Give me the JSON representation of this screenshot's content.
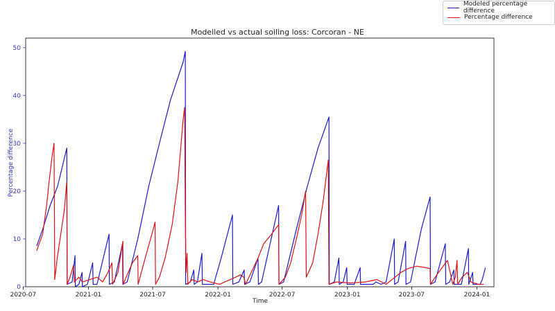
{
  "chart_data": {
    "type": "line",
    "title": "Modelled vs actual soiling loss: Corcoran - NE",
    "xlabel": "Time",
    "ylabel": "Percentage difference",
    "xlim": [
      "2020-07-08",
      "2024-02-18"
    ],
    "ylim": [
      0,
      52
    ],
    "yticks": [
      0,
      10,
      20,
      30,
      40,
      50
    ],
    "xticks": [
      "2020-07",
      "2021-01",
      "2021-07",
      "2022-01",
      "2022-07",
      "2023-01",
      "2023-07",
      "2024-01"
    ],
    "legend_position": "top-right",
    "series": [
      {
        "name": "Modeled percentage difference",
        "color": "#1a1acc",
        "points": [
          [
            "2020-08-08",
            8.5
          ],
          [
            "2020-08-25",
            12
          ],
          [
            "2020-09-15",
            17
          ],
          [
            "2020-10-06",
            21
          ],
          [
            "2020-10-27",
            27.5
          ],
          [
            "2020-11-01",
            29
          ],
          [
            "2020-11-02",
            0.5
          ],
          [
            "2020-11-16",
            1
          ],
          [
            "2020-11-24",
            6.5
          ],
          [
            "2020-11-25",
            0
          ],
          [
            "2020-12-05",
            0.5
          ],
          [
            "2020-12-14",
            3
          ],
          [
            "2020-12-15",
            0
          ],
          [
            "2020-12-29",
            0.5
          ],
          [
            "2021-01-13",
            5
          ],
          [
            "2021-01-14",
            0.5
          ],
          [
            "2021-01-25",
            0.5
          ],
          [
            "2021-02-28",
            11
          ],
          [
            "2021-03-01",
            0.5
          ],
          [
            "2021-03-15",
            1
          ],
          [
            "2021-04-07",
            9
          ],
          [
            "2021-04-08",
            0.5
          ],
          [
            "2021-04-20",
            1
          ],
          [
            "2021-05-20",
            10
          ],
          [
            "2021-06-20",
            21
          ],
          [
            "2021-07-20",
            30
          ],
          [
            "2021-08-20",
            39
          ],
          [
            "2021-09-25",
            47
          ],
          [
            "2021-10-01",
            49.2
          ],
          [
            "2021-10-02",
            0.5
          ],
          [
            "2021-10-15",
            1
          ],
          [
            "2021-10-25",
            3.5
          ],
          [
            "2021-10-26",
            0.5
          ],
          [
            "2021-11-04",
            1
          ],
          [
            "2021-11-17",
            7
          ],
          [
            "2021-11-18",
            0.5
          ],
          [
            "2021-12-20",
            0.5
          ],
          [
            "2022-01-10",
            6
          ],
          [
            "2022-02-11",
            15
          ],
          [
            "2022-02-12",
            0.5
          ],
          [
            "2022-03-01",
            1
          ],
          [
            "2022-03-16",
            3.5
          ],
          [
            "2022-03-17",
            0.5
          ],
          [
            "2022-04-01",
            1
          ],
          [
            "2022-04-24",
            6
          ],
          [
            "2022-04-25",
            0.5
          ],
          [
            "2022-05-04",
            1
          ],
          [
            "2022-06-21",
            17
          ],
          [
            "2022-06-22",
            0.5
          ],
          [
            "2022-07-05",
            1
          ],
          [
            "2022-08-10",
            12
          ],
          [
            "2022-09-10",
            21
          ],
          [
            "2022-10-10",
            29
          ],
          [
            "2022-11-10",
            35.5
          ],
          [
            "2022-11-11",
            0.5
          ],
          [
            "2022-11-25",
            1
          ],
          [
            "2022-12-08",
            6
          ],
          [
            "2022-12-09",
            0.5
          ],
          [
            "2022-12-20",
            1
          ],
          [
            "2022-12-30",
            4
          ],
          [
            "2022-12-31",
            0.5
          ],
          [
            "2023-01-20",
            0.5
          ],
          [
            "2023-02-06",
            4
          ],
          [
            "2023-02-07",
            0.5
          ],
          [
            "2023-03-15",
            0.5
          ],
          [
            "2023-03-22",
            1
          ],
          [
            "2023-04-06",
            0.5
          ],
          [
            "2023-04-20",
            1
          ],
          [
            "2023-05-13",
            10
          ],
          [
            "2023-05-14",
            0.5
          ],
          [
            "2023-05-24",
            1
          ],
          [
            "2023-06-14",
            9.5
          ],
          [
            "2023-06-15",
            0.5
          ],
          [
            "2023-06-28",
            1
          ],
          [
            "2023-07-28",
            12
          ],
          [
            "2023-08-22",
            18.8
          ],
          [
            "2023-08-23",
            0.5
          ],
          [
            "2023-09-05",
            1
          ],
          [
            "2023-10-04",
            9
          ],
          [
            "2023-10-05",
            0.5
          ],
          [
            "2023-10-16",
            1
          ],
          [
            "2023-10-28",
            3.5
          ],
          [
            "2023-10-29",
            0.5
          ],
          [
            "2023-11-18",
            0.5
          ],
          [
            "2023-12-08",
            8
          ],
          [
            "2023-12-09",
            0.5
          ],
          [
            "2023-12-20",
            3
          ],
          [
            "2023-12-21",
            0.5
          ],
          [
            "2024-01-10",
            0.5
          ],
          [
            "2024-01-16",
            1.5
          ],
          [
            "2024-01-25",
            4
          ]
        ]
      },
      {
        "name": "Percentage difference",
        "color": "#dd1111",
        "points": [
          [
            "2020-08-08",
            7.5
          ],
          [
            "2020-08-15",
            9
          ],
          [
            "2020-08-25",
            11
          ],
          [
            "2020-09-05",
            17
          ],
          [
            "2020-09-12",
            22
          ],
          [
            "2020-09-20",
            27
          ],
          [
            "2020-09-26",
            30
          ],
          [
            "2020-09-28",
            1.5
          ],
          [
            "2020-10-05",
            6
          ],
          [
            "2020-10-15",
            11
          ],
          [
            "2020-10-25",
            16
          ],
          [
            "2020-11-01",
            22
          ],
          [
            "2020-11-02",
            0.5
          ],
          [
            "2020-11-10",
            2
          ],
          [
            "2020-11-20",
            4.5
          ],
          [
            "2020-11-22",
            1
          ],
          [
            "2020-12-05",
            2
          ],
          [
            "2020-12-15",
            1
          ],
          [
            "2021-01-05",
            1.5
          ],
          [
            "2021-01-25",
            2
          ],
          [
            "2021-02-10",
            1
          ],
          [
            "2021-02-25",
            3
          ],
          [
            "2021-03-08",
            5
          ],
          [
            "2021-03-10",
            0.5
          ],
          [
            "2021-03-25",
            3
          ],
          [
            "2021-04-08",
            9.5
          ],
          [
            "2021-04-09",
            0.5
          ],
          [
            "2021-04-20",
            2.5
          ],
          [
            "2021-05-05",
            5
          ],
          [
            "2021-05-20",
            6.5
          ],
          [
            "2021-05-21",
            0.5
          ],
          [
            "2021-06-10",
            6
          ],
          [
            "2021-06-25",
            10
          ],
          [
            "2021-07-08",
            13.5
          ],
          [
            "2021-07-09",
            0.5
          ],
          [
            "2021-07-20",
            2
          ],
          [
            "2021-08-05",
            6
          ],
          [
            "2021-08-25",
            13
          ],
          [
            "2021-09-10",
            22
          ],
          [
            "2021-09-25",
            35
          ],
          [
            "2021-09-29",
            37.5
          ],
          [
            "2021-10-01",
            15
          ],
          [
            "2021-10-03",
            3
          ],
          [
            "2021-10-06",
            7
          ],
          [
            "2021-10-08",
            0.5
          ],
          [
            "2021-10-20",
            1.5
          ],
          [
            "2021-11-05",
            1
          ],
          [
            "2021-11-20",
            1.5
          ],
          [
            "2021-12-10",
            1
          ],
          [
            "2022-01-05",
            0.5
          ],
          [
            "2022-01-20",
            1
          ],
          [
            "2022-02-05",
            1.5
          ],
          [
            "2022-02-20",
            2
          ],
          [
            "2022-03-05",
            2.5
          ],
          [
            "2022-03-15",
            2
          ],
          [
            "2022-03-20",
            0.5
          ],
          [
            "2022-04-05",
            3
          ],
          [
            "2022-04-24",
            6
          ],
          [
            "2022-05-10",
            9
          ],
          [
            "2022-06-01",
            11
          ],
          [
            "2022-06-21",
            13
          ],
          [
            "2022-06-22",
            0.5
          ],
          [
            "2022-07-10",
            2
          ],
          [
            "2022-07-25",
            5
          ],
          [
            "2022-08-10",
            10
          ],
          [
            "2022-08-25",
            15
          ],
          [
            "2022-09-05",
            20
          ],
          [
            "2022-09-07",
            2
          ],
          [
            "2022-09-25",
            5
          ],
          [
            "2022-10-10",
            11
          ],
          [
            "2022-10-25",
            18
          ],
          [
            "2022-11-08",
            26.5
          ],
          [
            "2022-11-10",
            0.5
          ],
          [
            "2022-12-01",
            1
          ],
          [
            "2023-01-10",
            0.8
          ],
          [
            "2023-02-20",
            1
          ],
          [
            "2023-03-25",
            1.5
          ],
          [
            "2023-04-20",
            0.5
          ],
          [
            "2023-05-15",
            2
          ],
          [
            "2023-06-01",
            3
          ],
          [
            "2023-06-20",
            3.8
          ],
          [
            "2023-07-15",
            4.3
          ],
          [
            "2023-08-10",
            4
          ],
          [
            "2023-08-22",
            3.8
          ],
          [
            "2023-08-23",
            0.5
          ],
          [
            "2023-09-10",
            2.5
          ],
          [
            "2023-09-25",
            4
          ],
          [
            "2023-10-10",
            5.5
          ],
          [
            "2023-10-25",
            0.5
          ],
          [
            "2023-11-01",
            2
          ],
          [
            "2023-11-06",
            5.5
          ],
          [
            "2023-11-08",
            0.5
          ],
          [
            "2023-11-20",
            2
          ],
          [
            "2023-12-05",
            3
          ],
          [
            "2023-12-15",
            1
          ],
          [
            "2024-01-05",
            0.5
          ],
          [
            "2024-01-20",
            0.5
          ]
        ]
      }
    ]
  }
}
